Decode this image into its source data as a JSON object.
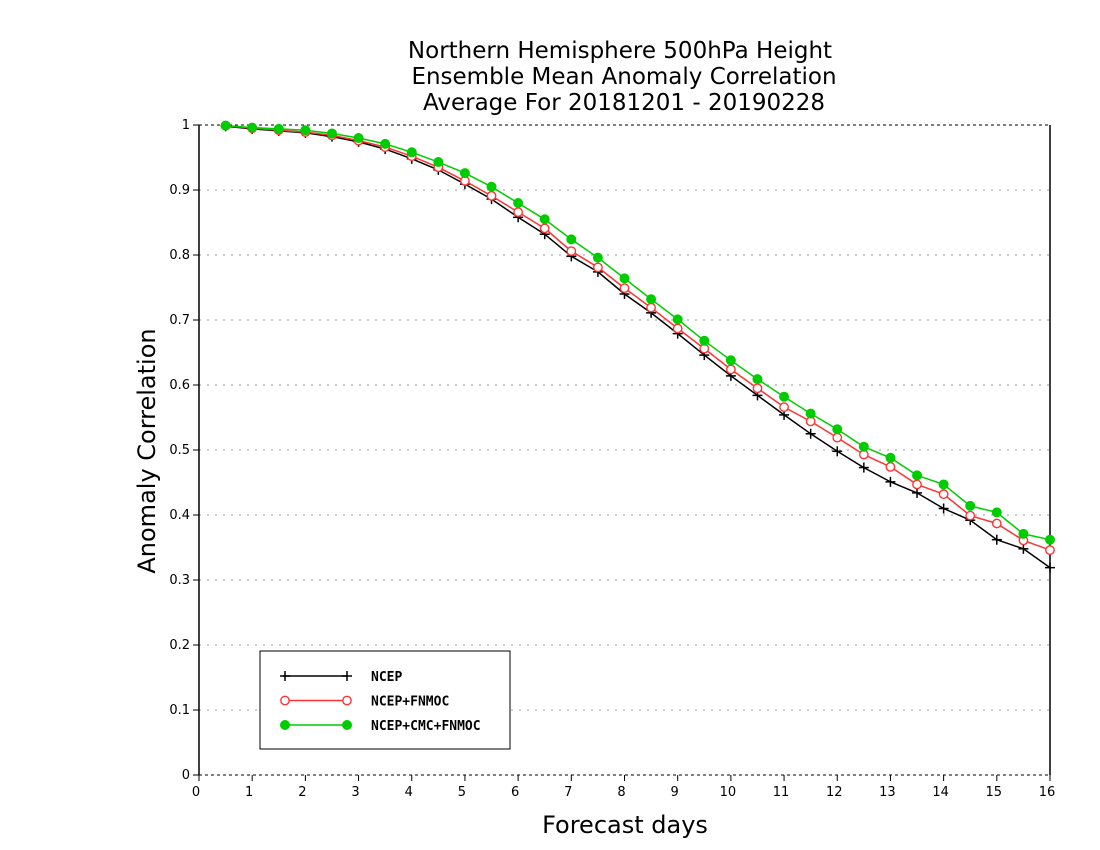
{
  "chart_data": {
    "type": "line",
    "title": [
      "Northern Hemisphere 500hPa Height",
      "Ensemble Mean Anomaly Correlation",
      "Average For 20181201 - 20190228"
    ],
    "xlabel": "Forecast days",
    "ylabel": "Anomaly Correlation",
    "xlim": [
      0,
      16
    ],
    "ylim": [
      0,
      1
    ],
    "xticks": [
      0,
      1,
      2,
      3,
      4,
      5,
      6,
      7,
      8,
      9,
      10,
      11,
      12,
      13,
      14,
      15,
      16
    ],
    "yticks": [
      0,
      0.1,
      0.2,
      0.3,
      0.4,
      0.5,
      0.6,
      0.7,
      0.8,
      0.9,
      1
    ],
    "ytick_labels": [
      "0",
      "0.1",
      "0.2",
      "0.3",
      "0.4",
      "0.5",
      "0.6",
      "0.7",
      "0.8",
      "0.9",
      "1"
    ],
    "grid": "horizontal dotted",
    "legend_position": "bottom-left",
    "x": [
      0.5,
      1,
      1.5,
      2,
      2.5,
      3,
      3.5,
      4,
      4.5,
      5,
      5.5,
      6,
      6.5,
      7,
      7.5,
      8,
      8.5,
      9,
      9.5,
      10,
      10.5,
      11,
      11.5,
      12,
      12.5,
      13,
      13.5,
      14,
      14.5,
      15,
      15.5,
      16
    ],
    "series": [
      {
        "name": "NCEP",
        "color": "#000000",
        "marker": "plus",
        "values": [
          0.998,
          0.994,
          0.991,
          0.988,
          0.982,
          0.974,
          0.963,
          0.948,
          0.931,
          0.909,
          0.886,
          0.858,
          0.832,
          0.798,
          0.774,
          0.74,
          0.711,
          0.679,
          0.646,
          0.614,
          0.584,
          0.554,
          0.525,
          0.498,
          0.473,
          0.451,
          0.434,
          0.41,
          0.392,
          0.362,
          0.348,
          0.319
        ]
      },
      {
        "name": "NCEP+FNMOC",
        "color": "#ff3333",
        "marker": "open-circle",
        "values": [
          0.999,
          0.995,
          0.992,
          0.989,
          0.984,
          0.976,
          0.966,
          0.952,
          0.935,
          0.914,
          0.891,
          0.866,
          0.841,
          0.806,
          0.781,
          0.749,
          0.719,
          0.687,
          0.656,
          0.624,
          0.595,
          0.566,
          0.544,
          0.519,
          0.493,
          0.474,
          0.447,
          0.432,
          0.399,
          0.387,
          0.361,
          0.346
        ]
      },
      {
        "name": "NCEP+CMC+FNMOC",
        "color": "#00cc00",
        "marker": "filled-circle",
        "values": [
          0.999,
          0.996,
          0.994,
          0.992,
          0.987,
          0.98,
          0.971,
          0.958,
          0.943,
          0.926,
          0.905,
          0.88,
          0.855,
          0.824,
          0.796,
          0.764,
          0.732,
          0.701,
          0.668,
          0.638,
          0.609,
          0.582,
          0.556,
          0.532,
          0.505,
          0.488,
          0.461,
          0.447,
          0.414,
          0.404,
          0.371,
          0.362
        ]
      }
    ]
  }
}
